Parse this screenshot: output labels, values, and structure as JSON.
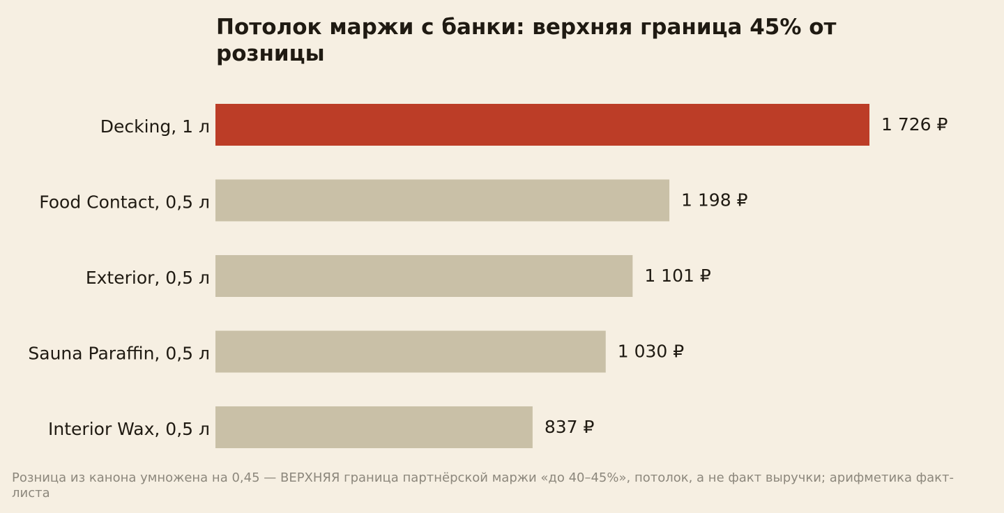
{
  "colors": {
    "background": "#f6efe2",
    "highlight_bar": "#bc3d27",
    "bar": "#c9c0a7",
    "text": "#1f1a12",
    "footnote": "#8c877c"
  },
  "footnote": "Розница из канона умножена на 0,45 — ВЕРХНЯЯ граница партнёрской маржи «до 40–45%», потолок, а не факт выручки; арифметика факт-листа",
  "chart_data": {
    "type": "bar",
    "orientation": "horizontal",
    "title": "Потолок маржи с банки: верхняя граница 45% от розницы",
    "categories": [
      "Decking, 1 л",
      "Food Contact, 0,5 л",
      "Exterior, 0,5 л",
      "Sauna Paraffin, 0,5 л",
      "Interior Wax, 0,5 л"
    ],
    "values": [
      1726,
      1198,
      1101,
      1030,
      837
    ],
    "value_labels": [
      "1 726 ₽",
      "1 198 ₽",
      "1 101 ₽",
      "1 030 ₽",
      "837 ₽"
    ],
    "highlighted": [
      true,
      false,
      false,
      false,
      false
    ],
    "xlim": [
      0,
      1726
    ],
    "xlabel": "",
    "ylabel": "",
    "grid": false,
    "legend": "none",
    "axes_visible": false
  }
}
